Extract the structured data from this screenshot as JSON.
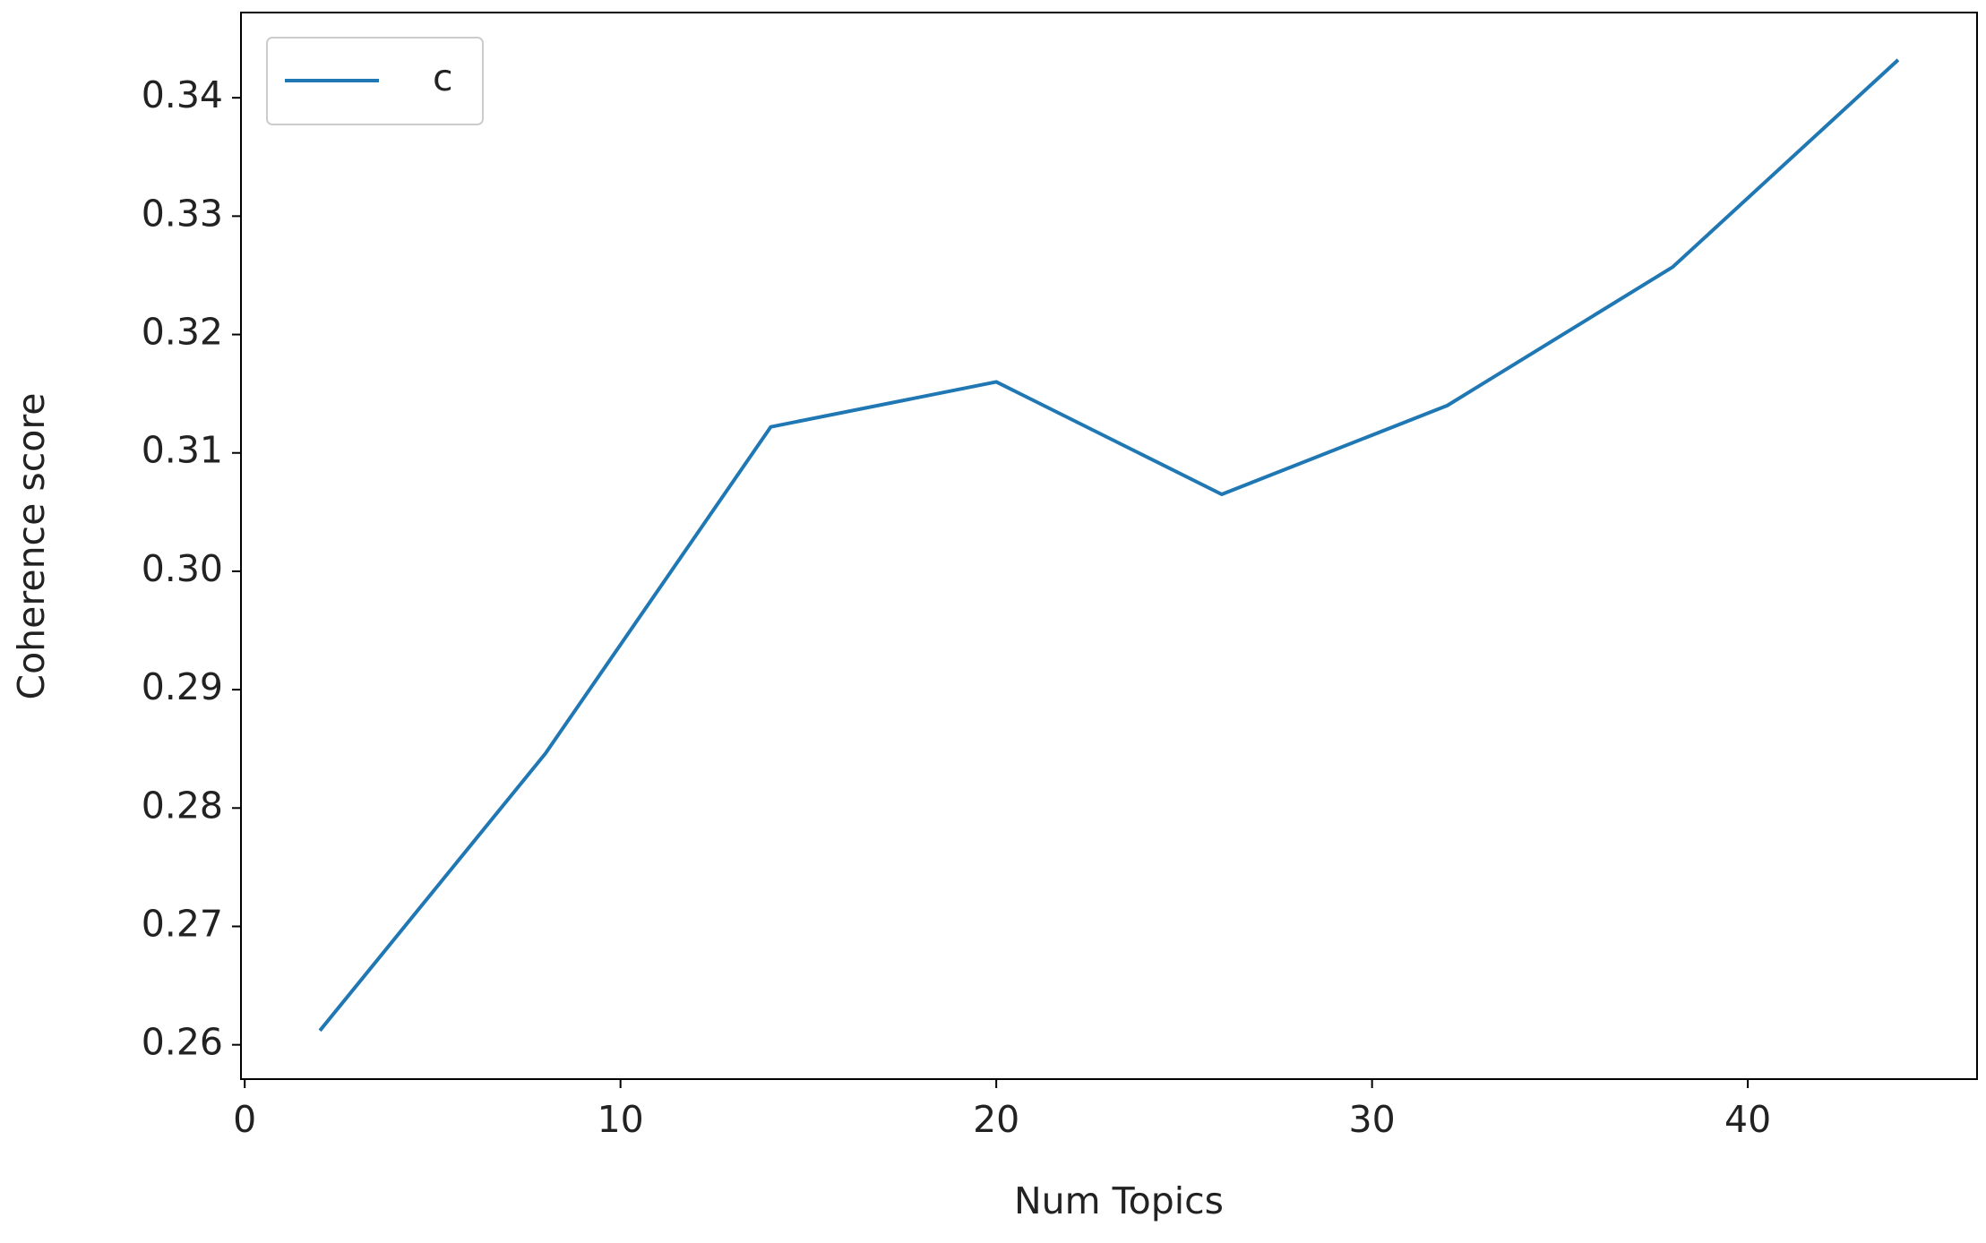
{
  "chart_data": {
    "type": "line",
    "xlabel": "Num Topics",
    "ylabel": "Coherence score",
    "x": [
      2,
      8,
      14,
      20,
      26,
      32,
      38,
      44
    ],
    "series": [
      {
        "name": "c",
        "color": "#1f77b4",
        "values": [
          0.2612,
          0.2846,
          0.3122,
          0.316,
          0.3065,
          0.314,
          0.3257,
          0.3432
        ]
      }
    ],
    "xlim": [
      -0.1,
      46.1
    ],
    "ylim": [
      0.2571,
      0.3472
    ],
    "xticks": [
      0,
      10,
      20,
      30,
      40
    ],
    "yticks": [
      0.26,
      0.27,
      0.28,
      0.29,
      {
        "value": 0.3,
        "label": "0.30"
      },
      0.31,
      0.32,
      0.33,
      0.34
    ],
    "legend": "upper left",
    "grid": false
  }
}
